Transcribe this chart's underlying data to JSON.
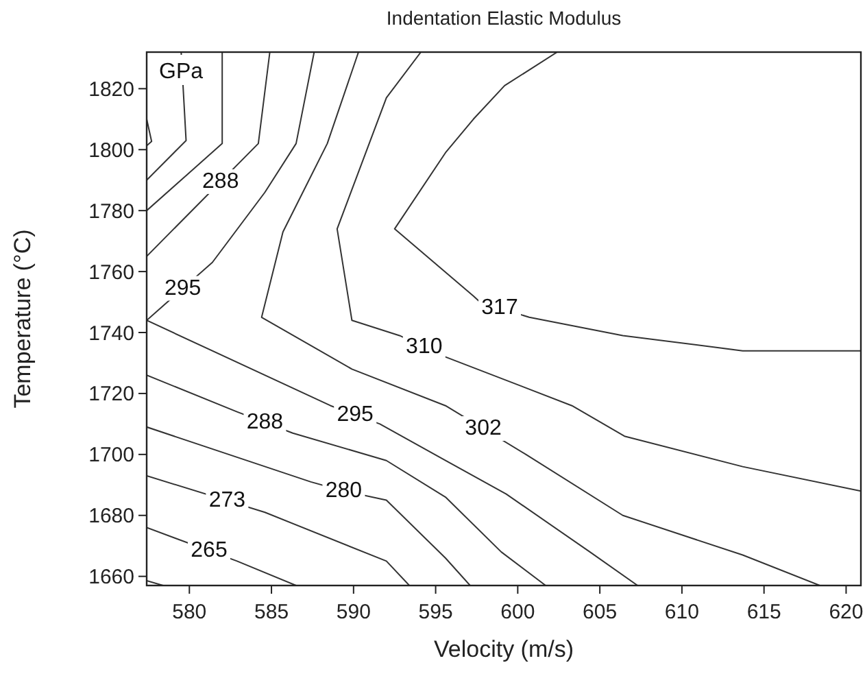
{
  "chart_data": {
    "type": "line",
    "title": "Indentation Elastic Modulus",
    "xlabel": "Velocity (m/s)",
    "ylabel": "Temperature (°C)",
    "xlim": [
      577.4,
      620.9
    ],
    "ylim": [
      1657,
      1832
    ],
    "xticks": [
      580,
      585,
      590,
      595,
      600,
      605,
      610,
      615,
      620
    ],
    "yticks": [
      1660,
      1680,
      1700,
      1720,
      1740,
      1760,
      1780,
      1800,
      1820
    ],
    "grid": false,
    "marker": "none",
    "line_style": "solid",
    "series": [
      {
        "color": "#333333",
        "x": [
          577.4,
          577.7,
          577.4
        ],
        "values": [
          1810,
          1802.7,
          1801.3
        ]
      },
      {
        "color": "#333333",
        "x": [
          579.5,
          579.8,
          577.4
        ],
        "values": [
          1832,
          1803,
          1790
        ]
      },
      {
        "color": "#333333",
        "x": [
          582.0,
          582.0,
          577.4
        ],
        "values": [
          1832,
          1802,
          1780
        ]
      },
      {
        "color": "#333333",
        "x": [
          584.9,
          584.2,
          577.4
        ],
        "values": [
          1832,
          1802,
          1765
        ]
      },
      {
        "color": "#333333",
        "x": [
          587.6,
          586.5,
          584.6,
          581.4,
          577.4,
          588.6,
          591.6,
          595.6,
          599.3,
          604.4,
          607.3
        ],
        "values": [
          1832,
          1802,
          1786,
          1763,
          1744,
          1716,
          1710,
          1698,
          1687,
          1668,
          1657
        ]
      },
      {
        "color": "#333333",
        "x": [
          590.3,
          588.4,
          585.7,
          584.4,
          589.9,
          595.6,
          600.5,
          606.4,
          613.7,
          618.4
        ],
        "values": [
          1832,
          1802,
          1773,
          1745,
          1728,
          1716,
          1700,
          1680,
          1667,
          1657
        ]
      },
      {
        "color": "#333333",
        "x": [
          594.1,
          592.0,
          589.0,
          589.9,
          592.8,
          595.6,
          603.3,
          606.5,
          613.7,
          620.9
        ],
        "values": [
          1832,
          1817,
          1774,
          1744,
          1739,
          1732,
          1716,
          1706,
          1696,
          1688
        ]
      },
      {
        "color": "#333333",
        "x": [
          602.4,
          599.2,
          597.3,
          595.6,
          592.5,
          597.3,
          597.7,
          600.7,
          606.4,
          613.7,
          620.9
        ],
        "values": [
          1832,
          1821,
          1810,
          1799,
          1774,
          1752,
          1750,
          1745,
          1739,
          1734,
          1734
        ]
      },
      {
        "color": "#333333",
        "x": [
          577.4,
          582.9,
          586.3,
          592.0,
          595.6,
          599.0,
          601.7
        ],
        "values": [
          1726,
          1714,
          1707,
          1698,
          1686,
          1668,
          1657
        ]
      },
      {
        "color": "#333333",
        "x": [
          577.4,
          587.4,
          589.4,
          592.0,
          595.6,
          597.1
        ],
        "values": [
          1709,
          1691,
          1688,
          1685,
          1666,
          1657
        ]
      },
      {
        "color": "#333333",
        "x": [
          577.4,
          584.6,
          592.0,
          593.4
        ],
        "values": [
          1693,
          1681,
          1665,
          1657
        ]
      },
      {
        "color": "#333333",
        "x": [
          577.4,
          582.9,
          586.5
        ],
        "values": [
          1676,
          1665,
          1657
        ]
      },
      {
        "color": "#333333",
        "x": [
          577.4,
          578.4
        ],
        "values": [
          1658.6,
          1657
        ]
      }
    ],
    "annotations": [
      "GPa",
      {
        "text": "288",
        "x": 581.9,
        "y": 1789.5
      },
      {
        "text": "295",
        "x": 579.6,
        "y": 1754.5
      },
      {
        "text": "288",
        "x": 584.6,
        "y": 1710.5
      },
      {
        "text": "295",
        "x": 590.1,
        "y": 1713
      },
      {
        "text": "310",
        "x": 594.3,
        "y": 1735.3
      },
      {
        "text": "317",
        "x": 598.9,
        "y": 1748
      },
      {
        "text": "302",
        "x": 597.9,
        "y": 1708.5
      },
      {
        "text": "273",
        "x": 582.3,
        "y": 1684.8
      },
      {
        "text": "280",
        "x": 589.4,
        "y": 1688
      },
      {
        "text": "265",
        "x": 581.2,
        "y": 1668.4
      }
    ]
  }
}
